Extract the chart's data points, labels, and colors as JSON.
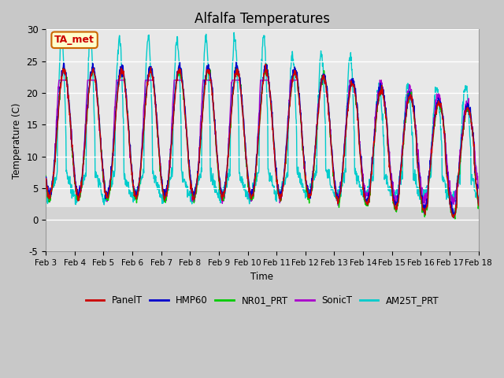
{
  "title": "Alfalfa Temperatures",
  "ylabel": "Temperature (C)",
  "xlabel": "Time",
  "annotation_text": "TA_met",
  "annotation_bg": "#ffffcc",
  "annotation_border": "#cc6600",
  "annotation_text_color": "#cc0000",
  "fig_bg_color": "#d8d8d8",
  "plot_bg_upper": "#e8e8e8",
  "plot_bg_lower": "#d0d0d0",
  "ylim": [
    -5,
    30
  ],
  "yticks": [
    -5,
    0,
    5,
    10,
    15,
    20,
    25,
    30
  ],
  "xtick_labels": [
    "Feb 3",
    "Feb 4",
    "Feb 5",
    "Feb 6",
    "Feb 7",
    "Feb 8",
    "Feb 9",
    "Feb 10",
    "Feb 11",
    "Feb 12",
    "Feb 13",
    "Feb 14",
    "Feb 15",
    "Feb 16",
    "Feb 17",
    "Feb 18"
  ],
  "series_colors": {
    "PanelT": "#cc0000",
    "HMP60": "#0000cc",
    "NR01_PRT": "#00cc00",
    "SonicT": "#aa00cc",
    "AM25T_PRT": "#00cccc"
  },
  "series_linewidth": 1.0,
  "n_days": 15,
  "points_per_day": 96
}
